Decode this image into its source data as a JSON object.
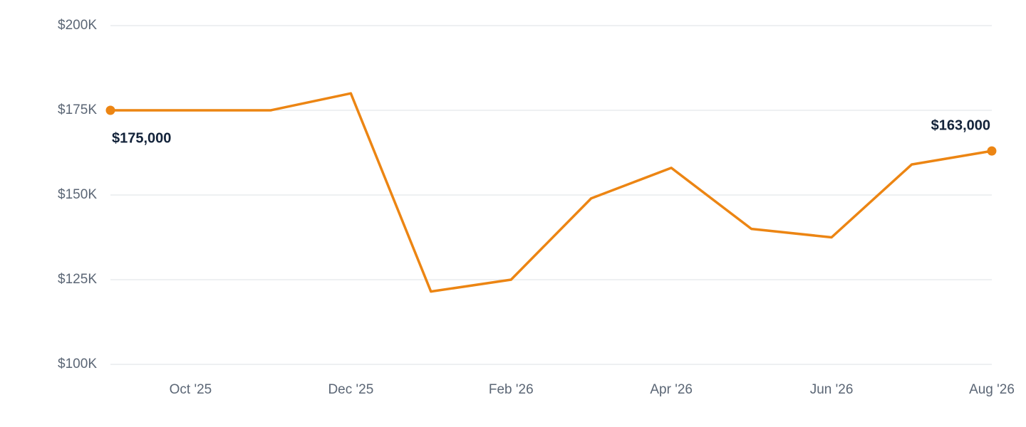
{
  "chart_data": {
    "type": "line",
    "categories": [
      null,
      "Oct '25",
      null,
      "Dec '25",
      null,
      "Feb '26",
      null,
      "Apr '26",
      null,
      "Jun '26",
      null,
      "Aug '26"
    ],
    "values": [
      175000,
      175000,
      175000,
      180000,
      121500,
      125000,
      149000,
      158000,
      140000,
      137500,
      159000,
      163000
    ],
    "value_labels": [
      "$175,000",
      null,
      null,
      null,
      null,
      null,
      null,
      null,
      null,
      null,
      null,
      "$163,000"
    ],
    "color": "#ec8513",
    "ylim": [
      100000,
      200000
    ],
    "yticks": [
      {
        "value": 100000,
        "label": "$100K"
      },
      {
        "value": 125000,
        "label": "$125K"
      },
      {
        "value": 150000,
        "label": "$150K"
      },
      {
        "value": 175000,
        "label": "$175K"
      },
      {
        "value": 200000,
        "label": "$200K"
      }
    ],
    "grid": true
  }
}
